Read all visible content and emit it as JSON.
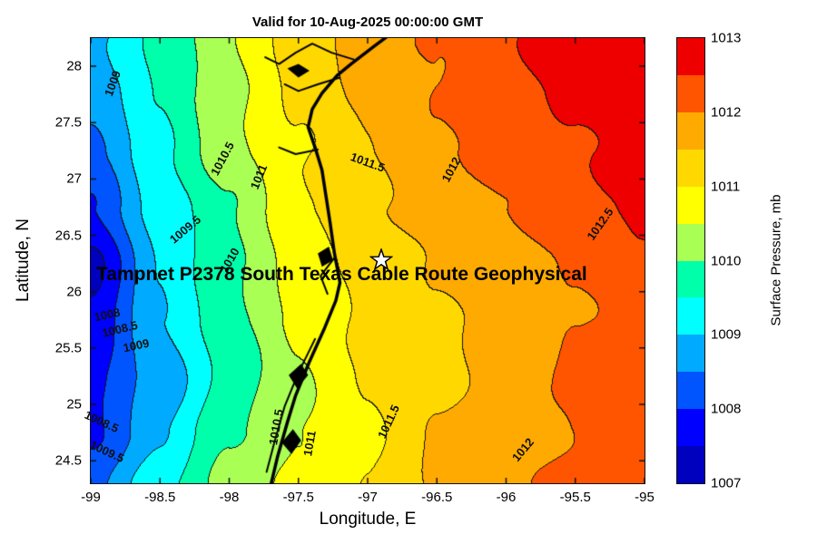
{
  "chart_data": {
    "type": "filled-contour-map",
    "title": "Valid for 10-Aug-2025 00:00:00 GMT",
    "annotation": "Tampnet P2378 South Texas Cable Route Geophysical",
    "xlabel": "Longitude, E",
    "ylabel": "Latitude, N",
    "xlim": [
      -99,
      -95
    ],
    "ylim": [
      24.3,
      28.25
    ],
    "xticks": [
      -99,
      -98.5,
      -98,
      -97.5,
      -97,
      -96.5,
      -96,
      -95.5,
      -95
    ],
    "xtick_labels": [
      "-99",
      "-98.5",
      "-98",
      "-97.5",
      "-97",
      "-96.5",
      "-96",
      "-95.5",
      "-95"
    ],
    "yticks": [
      28,
      27.5,
      27,
      26.5,
      26,
      25.5,
      25,
      24.5
    ],
    "ytick_labels": [
      "28",
      "27.5",
      "27",
      "26.5",
      "26",
      "25.5",
      "25",
      "24.5"
    ],
    "contour_interval": 0.5,
    "colorbar": {
      "label": "Surface Pressure, mb",
      "min": 1007,
      "max": 1013,
      "ticks": [
        1007,
        1008,
        1009,
        1010,
        1011,
        1012,
        1013
      ],
      "tick_labels": [
        "1007",
        "1008",
        "1009",
        "1010",
        "1011",
        "1012",
        "1013"
      ],
      "band_step": 0.5,
      "band_colors": [
        "#0000BF",
        "#0000FF",
        "#0055FF",
        "#00AAFF",
        "#00FFFF",
        "#00FFAA",
        "#AAFF55",
        "#FFFF00",
        "#FFD800",
        "#FFAA00",
        "#FF5500",
        "#EE0000"
      ]
    },
    "grid_lons": [
      -99,
      -98.5,
      -98,
      -97.5,
      -97,
      -96.5,
      -96,
      -95.5,
      -95
    ],
    "grid_lats": [
      24.25,
      24.75,
      25.25,
      25.75,
      26.25,
      26.75,
      27.25,
      27.75,
      28.25
    ],
    "pressure_grid_mb": [
      [
        1008.3,
        1009.4,
        1010.2,
        1010.6,
        1011.0,
        1011.55,
        1011.9,
        1012.1,
        1012.3
      ],
      [
        1008.0,
        1008.9,
        1009.9,
        1010.5,
        1010.95,
        1011.5,
        1011.85,
        1012.05,
        1012.3
      ],
      [
        1007.8,
        1008.7,
        1009.7,
        1010.4,
        1011.0,
        1011.4,
        1011.75,
        1012.0,
        1012.2
      ],
      [
        1007.6,
        1009.0,
        1009.8,
        1010.6,
        1011.1,
        1011.4,
        1011.7,
        1012.0,
        1012.2
      ],
      [
        1007.4,
        1009.0,
        1009.9,
        1010.7,
        1011.2,
        1011.5,
        1011.8,
        1012.1,
        1012.45
      ],
      [
        1007.9,
        1009.2,
        1010.0,
        1010.9,
        1011.4,
        1011.7,
        1012.0,
        1012.3,
        1012.6
      ],
      [
        1008.4,
        1009.4,
        1010.3,
        1011.0,
        1011.5,
        1011.9,
        1012.2,
        1012.5,
        1012.75
      ],
      [
        1008.7,
        1009.5,
        1010.4,
        1011.1,
        1011.6,
        1012.0,
        1012.35,
        1012.65,
        1012.9
      ],
      [
        1008.8,
        1009.6,
        1010.5,
        1011.2,
        1011.7,
        1012.1,
        1012.45,
        1012.75,
        1013.0
      ]
    ],
    "contour_labels": [
      {
        "text": "1009",
        "lon": -98.84,
        "lat": 27.85,
        "rot": -70
      },
      {
        "text": "1010.5",
        "lon": -98.05,
        "lat": 27.18,
        "rot": -62
      },
      {
        "text": "1011",
        "lon": -97.79,
        "lat": 27.02,
        "rot": -68
      },
      {
        "text": "1011.5",
        "lon": -97.0,
        "lat": 27.15,
        "rot": 20
      },
      {
        "text": "1012",
        "lon": -96.4,
        "lat": 27.08,
        "rot": -62
      },
      {
        "text": "1012.5",
        "lon": -95.32,
        "lat": 26.6,
        "rot": -55
      },
      {
        "text": "1009.5",
        "lon": -98.32,
        "lat": 26.55,
        "rot": -40
      },
      {
        "text": "1010",
        "lon": -98.0,
        "lat": 26.28,
        "rot": -60
      },
      {
        "text": "1008",
        "lon": -98.88,
        "lat": 25.8,
        "rot": -12
      },
      {
        "text": "1008.5",
        "lon": -98.79,
        "lat": 25.67,
        "rot": -14
      },
      {
        "text": "1009",
        "lon": -98.67,
        "lat": 25.52,
        "rot": -12
      },
      {
        "text": "1008.5",
        "lon": -98.92,
        "lat": 24.85,
        "rot": 25
      },
      {
        "text": "1009.5",
        "lon": -98.88,
        "lat": 24.58,
        "rot": 25
      },
      {
        "text": "1010.5",
        "lon": -97.66,
        "lat": 24.8,
        "rot": -80
      },
      {
        "text": "1011",
        "lon": -97.42,
        "lat": 24.65,
        "rot": -80
      },
      {
        "text": "1011.5",
        "lon": -96.85,
        "lat": 24.85,
        "rot": -65
      },
      {
        "text": "1012",
        "lon": -95.88,
        "lat": 24.6,
        "rot": -50
      }
    ],
    "marker": {
      "shape": "star",
      "lon": -96.9,
      "lat": 26.28
    },
    "coastline": [
      [
        [
          -96.82,
          28.3
        ],
        [
          -96.95,
          28.18
        ],
        [
          -97.12,
          28.02
        ],
        [
          -97.22,
          27.92
        ],
        [
          -97.33,
          27.76
        ],
        [
          -97.4,
          27.62
        ],
        [
          -97.43,
          27.46
        ],
        [
          -97.38,
          27.28
        ],
        [
          -97.33,
          27.08
        ],
        [
          -97.3,
          26.84
        ],
        [
          -97.27,
          26.6
        ],
        [
          -97.24,
          26.34
        ],
        [
          -97.2,
          26.08
        ],
        [
          -97.23,
          25.92
        ],
        [
          -97.31,
          25.68
        ],
        [
          -97.42,
          25.38
        ],
        [
          -97.52,
          25.08
        ],
        [
          -97.58,
          24.84
        ],
        [
          -97.65,
          24.54
        ],
        [
          -97.7,
          24.28
        ]
      ],
      [
        [
          -97.1,
          28.06
        ],
        [
          -97.26,
          28.12
        ],
        [
          -97.4,
          28.2
        ],
        [
          -97.52,
          28.12
        ],
        [
          -97.64,
          28.02
        ],
        [
          -97.74,
          28.08
        ]
      ],
      [
        [
          -97.2,
          27.9
        ],
        [
          -97.36,
          27.84
        ],
        [
          -97.5,
          27.78
        ],
        [
          -97.6,
          27.84
        ]
      ],
      [
        [
          -97.36,
          27.26
        ],
        [
          -97.52,
          27.22
        ],
        [
          -97.64,
          27.28
        ]
      ],
      [
        [
          -97.38,
          25.58
        ],
        [
          -97.5,
          25.28
        ],
        [
          -97.6,
          24.98
        ],
        [
          -97.67,
          24.68
        ],
        [
          -97.73,
          24.4
        ]
      ],
      [
        [
          -97.24,
          26.3
        ],
        [
          -97.34,
          26.14
        ],
        [
          -97.29,
          25.98
        ]
      ]
    ],
    "islands": [
      [
        [
          -97.42,
          27.96
        ],
        [
          -97.5,
          28.02
        ],
        [
          -97.58,
          27.98
        ],
        [
          -97.5,
          27.9
        ]
      ],
      [
        [
          -97.28,
          26.4
        ],
        [
          -97.36,
          26.34
        ],
        [
          -97.33,
          26.22
        ],
        [
          -97.25,
          26.28
        ]
      ],
      [
        [
          -97.48,
          25.36
        ],
        [
          -97.57,
          25.26
        ],
        [
          -97.51,
          25.14
        ],
        [
          -97.43,
          25.26
        ]
      ],
      [
        [
          -97.54,
          24.78
        ],
        [
          -97.62,
          24.66
        ],
        [
          -97.55,
          24.56
        ],
        [
          -97.48,
          24.68
        ]
      ]
    ]
  }
}
